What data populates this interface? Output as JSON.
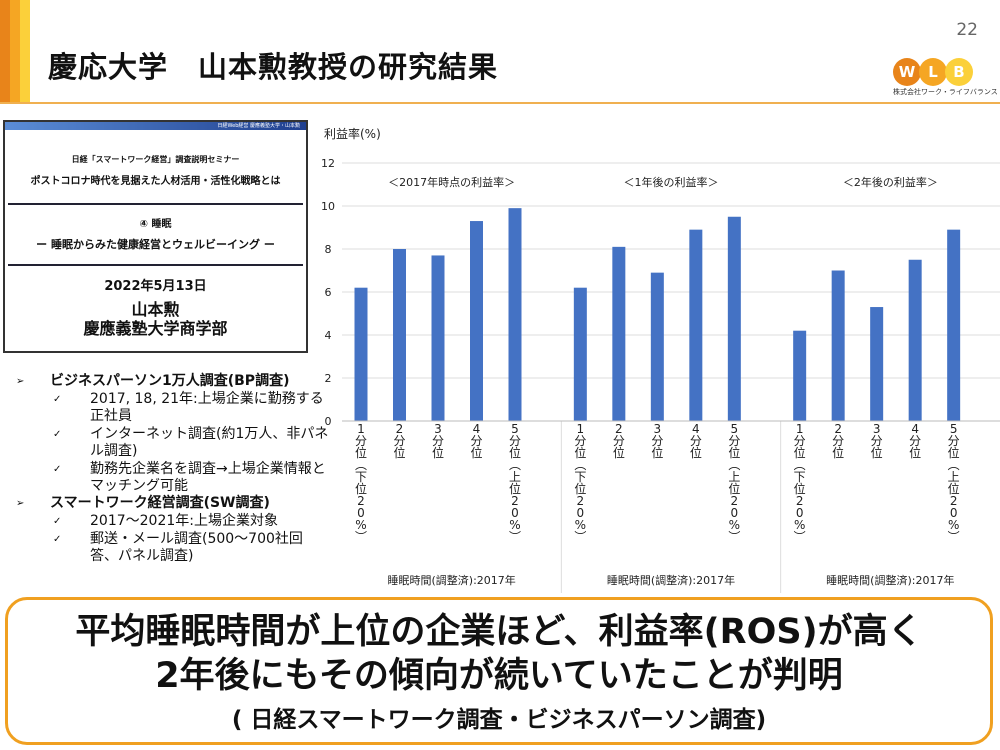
{
  "header": {
    "title": "慶応大学　山本勲教授の研究結果",
    "page_number": "22",
    "logo": {
      "letters": [
        "W",
        "L",
        "B"
      ],
      "company": "株式会社ワーク・ライフバランス",
      "colors": [
        "#e8841a",
        "#f5a623",
        "#fbd03a"
      ]
    }
  },
  "thumbnail": {
    "banner": "日経Web経営 慶應義塾大学・山本勲",
    "line1": "日経「スマートワーク経営」調査説明セミナー",
    "line2": "ポストコロナ時代を見据えた人材活用・活性化戦略とは",
    "line3": "④ 睡眠",
    "line4": "ー 睡眠からみた健康経営とウェルビーイング ー",
    "date": "2022年5月13日",
    "author": "山本勲",
    "affiliation": "慶應義塾大学商学部"
  },
  "bullets": [
    {
      "text": "ビジネスパーソン1万人調査(BP調査)",
      "children": [
        "2017, 18, 21年:上場企業に勤務する正社員",
        "インターネット調査(約1万人、非パネル調査)",
        "勤務先企業名を調査→上場企業情報とマッチング可能"
      ]
    },
    {
      "text": "スマートワーク経営調査(SW調査)",
      "children": [
        "2017〜2021年:上場企業対象",
        "郵送・メール調査(500〜700社回答、パネル調査)"
      ]
    }
  ],
  "chart_data": {
    "type": "bar",
    "ylabel": "利益率(%)",
    "ylim": [
      0,
      12
    ],
    "yticks": [
      0,
      2,
      4,
      6,
      8,
      10,
      12
    ],
    "grid": true,
    "bar_color": "#4472c4",
    "categories": [
      "1分位（下位20%）",
      "2分位",
      "3分位",
      "4分位",
      "5分位（上位20%）"
    ],
    "groups": [
      {
        "title": "＜2017年時点の利益率＞",
        "xlabel": "睡眠時間(調整済):2017年",
        "values": [
          6.2,
          8.0,
          7.7,
          9.3,
          9.9
        ]
      },
      {
        "title": "＜1年後の利益率＞",
        "xlabel": "睡眠時間(調整済):2017年",
        "values": [
          6.2,
          8.1,
          6.9,
          8.9,
          9.5
        ]
      },
      {
        "title": "＜2年後の利益率＞",
        "xlabel": "睡眠時間(調整済):2017年",
        "values": [
          4.2,
          7.0,
          5.3,
          7.5,
          8.9
        ]
      }
    ]
  },
  "callout": {
    "line1": "平均睡眠時間が上位の企業ほど、利益率(ROS)が高く",
    "line2": "2年後にもその傾向が続いていたことが判明",
    "line3": "( 日経スマートワーク調査・ビジネスパーソン調査)",
    "border_color": "#f0a020"
  }
}
